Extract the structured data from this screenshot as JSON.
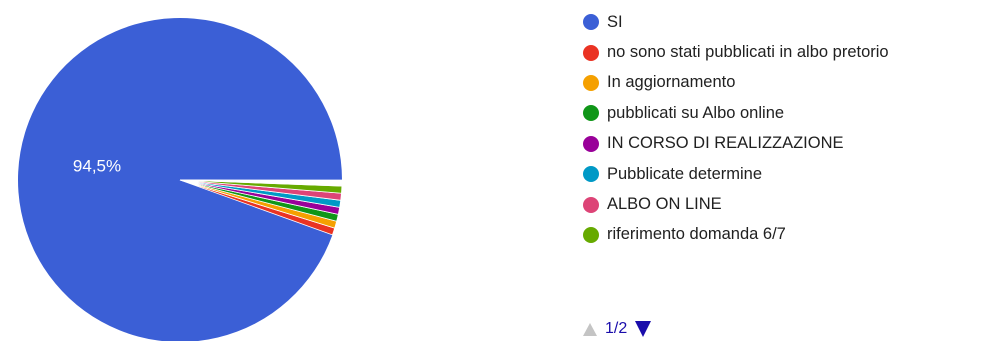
{
  "chart_data": {
    "type": "pie",
    "title": "",
    "slices": [
      {
        "label": "SI",
        "percent": 94.5,
        "percent_label": "94,5%",
        "color": "#3b5fd6"
      },
      {
        "label": "no sono stati pubblicati in albo pretorio",
        "percent": 0.7,
        "color": "#ea3323"
      },
      {
        "label": "In aggiornamento",
        "percent": 0.7,
        "color": "#f5a000"
      },
      {
        "label": "pubblicati su Albo online",
        "percent": 0.7,
        "color": "#109618"
      },
      {
        "label": "IN CORSO DI REALIZZAZIONE",
        "percent": 0.7,
        "color": "#990099"
      },
      {
        "label": "Pubblicate determine",
        "percent": 0.7,
        "color": "#0099c6"
      },
      {
        "label": "ALBO ON LINE",
        "percent": 0.7,
        "color": "#dd4477"
      },
      {
        "label": "riferimento domanda 6/7",
        "percent": 0.7,
        "color": "#66aa00"
      }
    ],
    "hidden_slices_colors": [
      "#b82e2e",
      "#316395",
      "#994499",
      "#22aa99",
      "#aaaa11",
      "#6633cc",
      "#e67300",
      "#8b0707",
      "#651067",
      "#329262",
      "#5574a6",
      "#3b3eac"
    ],
    "legend_position": "right"
  },
  "legend_pager": {
    "page_label": "1/2",
    "prev_icon": "triangle-up-icon",
    "next_icon": "triangle-down-icon",
    "prev_color": "#c4c4c4",
    "next_color": "#1a0dab"
  }
}
